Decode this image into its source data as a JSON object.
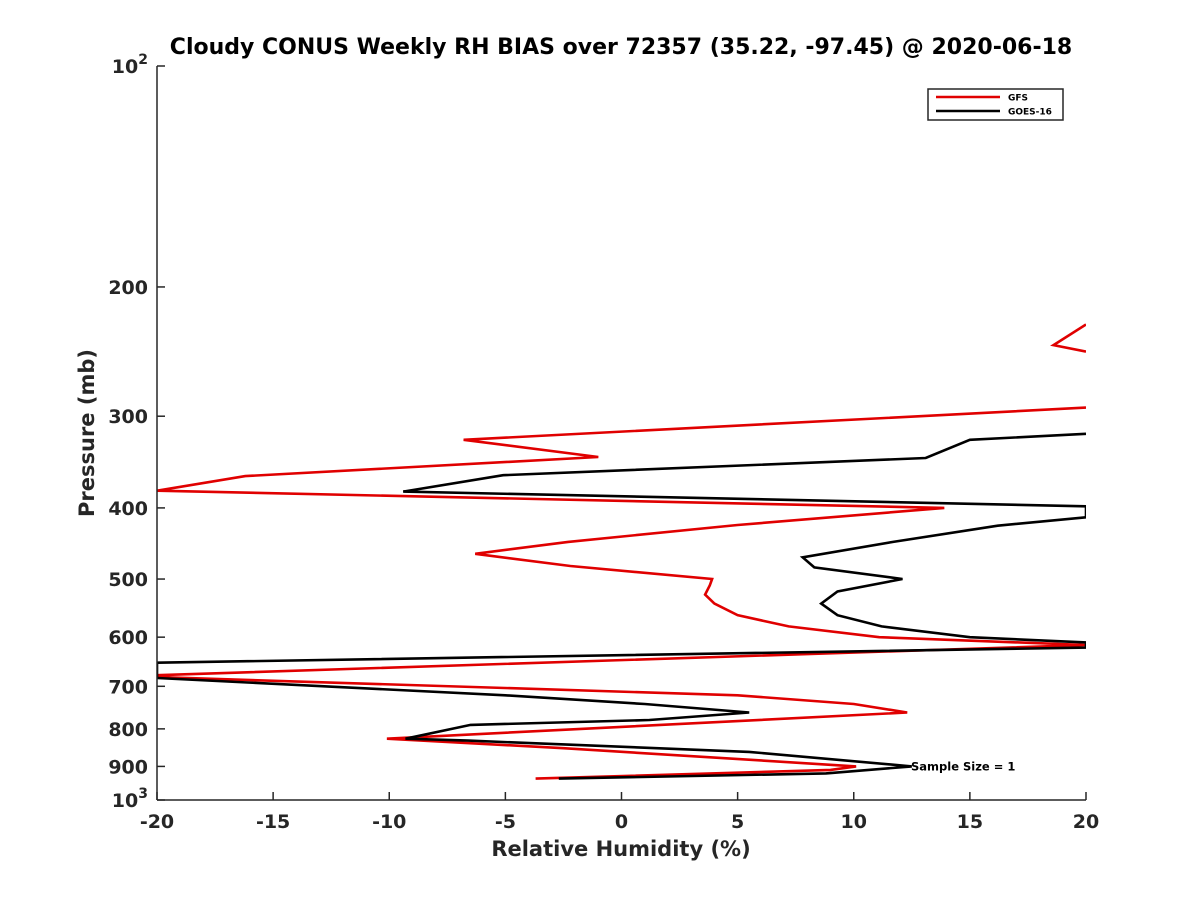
{
  "chart_data": {
    "type": "line",
    "title": "Cloudy CONUS Weekly RH BIAS over 72357 (35.22, -97.45) @ 2020-06-18",
    "xlabel": "Relative Humidity (%)",
    "ylabel": "Pressure (mb)",
    "xlim": [
      -20,
      20
    ],
    "ylim": [
      100,
      1000
    ],
    "y_scale": "log",
    "y_reversed": true,
    "x_ticks": [
      "-20",
      "-15",
      "-10",
      "-5",
      "0",
      "5",
      "10",
      "15",
      "20"
    ],
    "y_ticks": [
      {
        "value": 200,
        "label": "200"
      },
      {
        "value": 300,
        "label": "300"
      },
      {
        "value": 400,
        "label": "400"
      },
      {
        "value": 500,
        "label": "500"
      },
      {
        "value": 600,
        "label": "600"
      },
      {
        "value": 700,
        "label": "700"
      },
      {
        "value": 800,
        "label": "800"
      },
      {
        "value": 900,
        "label": "900"
      }
    ],
    "y_end_labels": {
      "top_base": "10",
      "top_exp": "2",
      "bottom_base": "10",
      "bottom_exp": "3"
    },
    "legend_position": "top-right",
    "annotation": "Sample Size = 1",
    "series": [
      {
        "name": "GFS",
        "color": "#e00000",
        "points": [
          [
            -3.7,
            935
          ],
          [
            9.0,
            910
          ],
          [
            10.1,
            900
          ],
          [
            -2.5,
            850
          ],
          [
            -10.1,
            825
          ],
          [
            12.3,
            760
          ],
          [
            10.0,
            740
          ],
          [
            5.0,
            720
          ],
          [
            -20,
            680
          ],
          [
            -20,
            676
          ],
          [
            20,
            615
          ],
          [
            11.1,
            600
          ],
          [
            7.2,
            580
          ],
          [
            5.0,
            560
          ],
          [
            4.0,
            540
          ],
          [
            3.6,
            525
          ],
          [
            3.8,
            510
          ],
          [
            3.9,
            500
          ],
          [
            -2.2,
            480
          ],
          [
            -6.3,
            462
          ],
          [
            -2.3,
            445
          ],
          [
            5.0,
            422
          ],
          [
            13.9,
            400
          ],
          [
            -20,
            379
          ],
          [
            -16.2,
            362
          ],
          [
            -1.0,
            341
          ],
          [
            -6.8,
            323
          ],
          [
            20,
            292
          ]
        ]
      },
      {
        "name": "GFS",
        "color": "#e00000",
        "points": [
          [
            20,
            245
          ],
          [
            18.6,
            240
          ],
          [
            20,
            225
          ]
        ]
      },
      {
        "name": "GOES-16",
        "color": "#000000",
        "points": [
          [
            -2.7,
            935
          ],
          [
            8.8,
            920
          ],
          [
            12.5,
            900
          ],
          [
            5.5,
            860
          ],
          [
            -6.6,
            830
          ],
          [
            -9.3,
            825
          ],
          [
            -6.5,
            790
          ],
          [
            1.2,
            778
          ],
          [
            5.5,
            760
          ],
          [
            1.0,
            740
          ],
          [
            -5.0,
            720
          ],
          [
            -20,
            682
          ],
          [
            -20,
            650
          ],
          [
            20,
            620
          ],
          [
            20,
            610
          ],
          [
            15.0,
            600
          ],
          [
            11.2,
            580
          ],
          [
            9.3,
            560
          ],
          [
            8.6,
            540
          ],
          [
            9.3,
            520
          ],
          [
            12.1,
            500
          ],
          [
            8.3,
            482
          ],
          [
            7.8,
            467
          ],
          [
            11.7,
            445
          ],
          [
            16.2,
            423
          ],
          [
            20,
            412
          ],
          [
            20,
            398
          ],
          [
            -9.4,
            380
          ],
          [
            -5.1,
            361
          ],
          [
            13.1,
            342
          ],
          [
            15.0,
            323
          ],
          [
            20,
            317
          ]
        ]
      }
    ]
  }
}
